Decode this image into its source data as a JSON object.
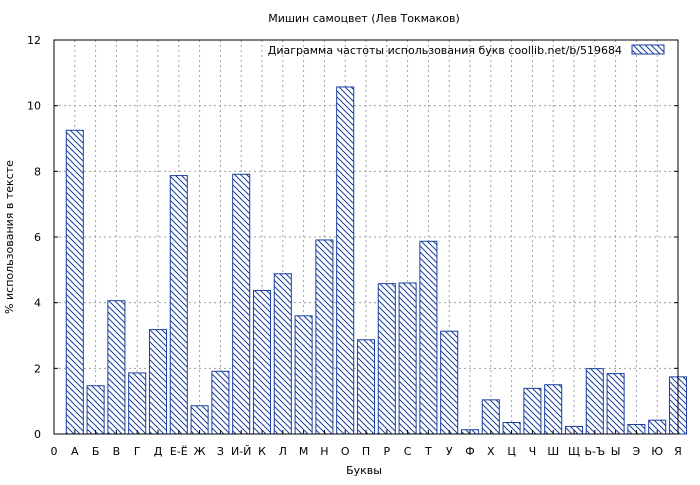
{
  "chart_data": {
    "type": "bar",
    "title": "Мишин самоцвет (Лев Токмаков)",
    "xlabel": "Буквы",
    "ylabel": "% использования в тексте",
    "legend": {
      "label": "Диаграмма частоты использования букв  coollib.net/b/519684",
      "placement": "top-right"
    },
    "ylim": [
      0,
      12
    ],
    "yticks": [
      0,
      2,
      4,
      6,
      8,
      10,
      12
    ],
    "grid": true,
    "x_tick_labels": [
      "0",
      "А",
      "Б",
      "В",
      "Г",
      "Д",
      "Е-Ё",
      "Ж",
      "З",
      "И-Й",
      "К",
      "Л",
      "М",
      "Н",
      "О",
      "П",
      "Р",
      "С",
      "Т",
      "У",
      "Ф",
      "Х",
      "Ц",
      "Ч",
      "Ш",
      "Щ",
      "Ь-Ъ",
      "Ы",
      "Э",
      "Ю",
      "Я"
    ],
    "categories": [
      "А",
      "Б",
      "В",
      "Г",
      "Д",
      "Е-Ё",
      "Ж",
      "З",
      "И-Й",
      "К",
      "Л",
      "М",
      "Н",
      "О",
      "П",
      "Р",
      "С",
      "Т",
      "У",
      "Ф",
      "Х",
      "Ц",
      "Ч",
      "Ш",
      "Щ",
      "Ь-Ъ",
      "Ы",
      "Э",
      "Ю",
      "Я"
    ],
    "values": [
      9.25,
      1.47,
      4.06,
      1.86,
      3.18,
      7.87,
      0.86,
      1.91,
      7.91,
      4.37,
      4.88,
      3.6,
      5.91,
      10.57,
      2.87,
      4.58,
      4.6,
      5.87,
      3.13,
      0.13,
      1.04,
      0.35,
      1.39,
      1.5,
      0.23,
      1.99,
      1.84,
      0.29,
      0.42,
      1.74
    ],
    "colors": {
      "bar_stroke": "#1a3fa0",
      "hatch": "#1a3fa0",
      "axis": "#000000",
      "grid": "#a0a0a0"
    }
  }
}
